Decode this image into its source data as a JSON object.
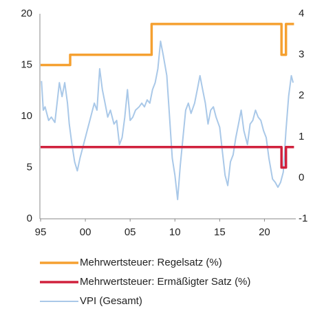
{
  "chart_data": {
    "type": "line",
    "xlim": [
      1995,
      2023.5
    ],
    "xticks": [
      {
        "value": 1995,
        "label": "95"
      },
      {
        "value": 2000,
        "label": "00"
      },
      {
        "value": 2005,
        "label": "05"
      },
      {
        "value": 2010,
        "label": "10"
      },
      {
        "value": 2015,
        "label": "15"
      },
      {
        "value": 2020,
        "label": "20"
      }
    ],
    "ylim": [
      0,
      20
    ],
    "yticks": [
      0,
      5,
      10,
      15,
      20
    ],
    "y2lim": [
      -1,
      4
    ],
    "y2ticks": [
      -1,
      0,
      1,
      2,
      3,
      4
    ],
    "grid": false,
    "legend": "bottom",
    "series": [
      {
        "name": "Mehrwertsteuer: Regelsatz (%)",
        "color": "#f5a030",
        "x": [
          1995,
          1998.3,
          1998.3,
          2007.4,
          2007.4,
          2021.9,
          2021.9,
          2022.4,
          2022.4,
          2023.3
        ],
        "values": [
          15,
          15,
          16,
          16,
          19,
          19,
          16,
          16,
          19,
          19
        ]
      },
      {
        "name": "Mehrwertsteuer: Ermäßigter Satz (%)",
        "color": "#d0213d",
        "x": [
          1995,
          2021.9,
          2021.9,
          2022.4,
          2022.4,
          2023.3
        ],
        "values": [
          7,
          7,
          5,
          5,
          7,
          7
        ]
      },
      {
        "name": "VPI (Gesamt)",
        "color": "#a9c8e8",
        "axis": "y2",
        "x": [
          1995.1,
          1995.3,
          1995.5,
          1995.9,
          1996.2,
          1996.6,
          1997.1,
          1997.4,
          1997.7,
          1998.0,
          1998.2,
          1998.5,
          1998.8,
          1999.1,
          1999.4,
          1999.7,
          2000.2,
          2000.5,
          2001.0,
          2001.3,
          2001.6,
          2001.9,
          2002.2,
          2002.5,
          2002.8,
          2003.2,
          2003.5,
          2003.8,
          2004.1,
          2004.4,
          2004.7,
          2005.0,
          2005.3,
          2005.6,
          2006.0,
          2006.3,
          2006.6,
          2006.9,
          2007.2,
          2007.5,
          2007.8,
          2008.1,
          2008.4,
          2008.7,
          2009.1,
          2009.4,
          2009.7,
          2010.0,
          2010.3,
          2010.6,
          2010.9,
          2011.2,
          2011.5,
          2011.8,
          2012.2,
          2012.5,
          2012.8,
          2013.1,
          2013.4,
          2013.7,
          2014.0,
          2014.3,
          2014.6,
          2015.0,
          2015.3,
          2015.6,
          2015.9,
          2016.2,
          2016.5,
          2016.8,
          2017.1,
          2017.4,
          2017.7,
          2018.1,
          2018.4,
          2018.7,
          2019.0,
          2019.3,
          2019.6,
          2019.9,
          2020.2,
          2020.5,
          2020.9,
          2021.2,
          2021.5,
          2021.8,
          2022.1,
          2022.4,
          2022.7,
          2023.0,
          2023.2
        ],
        "values": [
          2.36,
          1.65,
          1.73,
          1.4,
          1.48,
          1.35,
          2.32,
          1.98,
          2.32,
          1.82,
          1.31,
          0.81,
          0.39,
          0.17,
          0.48,
          0.73,
          1.15,
          1.4,
          1.82,
          1.65,
          2.66,
          2.15,
          1.82,
          1.48,
          1.65,
          1.31,
          1.4,
          0.81,
          0.98,
          1.48,
          2.15,
          1.4,
          1.48,
          1.65,
          1.73,
          1.82,
          1.73,
          1.9,
          1.82,
          2.15,
          2.32,
          2.66,
          3.33,
          2.99,
          2.49,
          1.48,
          0.48,
          0.06,
          -0.53,
          0.31,
          0.98,
          1.65,
          1.82,
          1.57,
          1.82,
          2.15,
          2.49,
          2.15,
          1.82,
          1.31,
          1.65,
          1.73,
          1.48,
          1.23,
          0.64,
          0.06,
          -0.19,
          0.39,
          0.56,
          0.98,
          1.31,
          1.65,
          1.15,
          0.81,
          1.31,
          1.4,
          1.65,
          1.48,
          1.4,
          1.15,
          0.98,
          0.48,
          -0.03,
          -0.11,
          -0.23,
          -0.11,
          0.14,
          1.15,
          1.99,
          2.49,
          2.32
        ]
      }
    ]
  }
}
